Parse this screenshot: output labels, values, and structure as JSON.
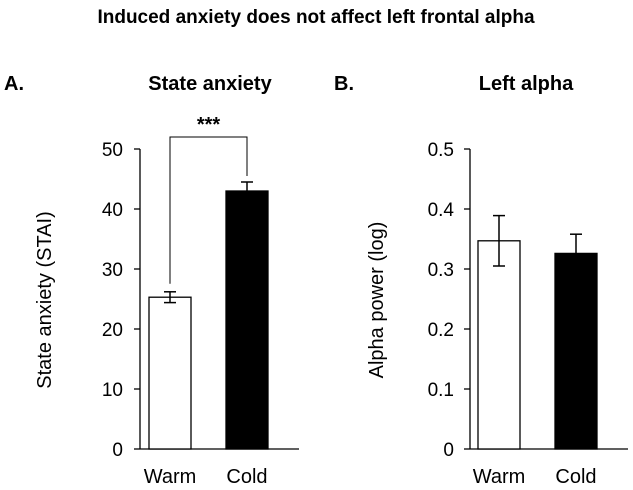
{
  "figure": {
    "title": "Induced anxiety does not affect left frontal alpha"
  },
  "colors": {
    "warm_fill": "#ffffff",
    "cold_fill": "#000000",
    "stroke": "#000000"
  },
  "chart_data": [
    {
      "type": "bar",
      "panel_label": "A.",
      "title": "State anxiety",
      "ylabel": "State anxiety (STAI)",
      "xlabel": "",
      "ylim": [
        0,
        50
      ],
      "yticks": [
        "0",
        "10",
        "20",
        "30",
        "40",
        "50"
      ],
      "ytick_values": [
        0,
        10,
        20,
        30,
        40,
        50
      ],
      "categories": [
        "Warm",
        "Cold"
      ],
      "values": [
        25.3,
        43.0
      ],
      "errors": [
        0.9,
        1.5
      ],
      "significance": {
        "label": "***",
        "between": [
          "Warm",
          "Cold"
        ]
      }
    },
    {
      "type": "bar",
      "panel_label": "B.",
      "title": "Left alpha",
      "ylabel": "Alpha power (log)",
      "xlabel": "",
      "ylim": [
        0,
        0.5
      ],
      "yticks": [
        "0",
        "0.1",
        "0.2",
        "0.3",
        "0.4",
        "0.5"
      ],
      "ytick_values": [
        0,
        0.1,
        0.2,
        0.3,
        0.4,
        0.5
      ],
      "categories": [
        "Warm",
        "Cold"
      ],
      "values": [
        0.347,
        0.326
      ],
      "errors": [
        0.042,
        0.032
      ]
    }
  ]
}
